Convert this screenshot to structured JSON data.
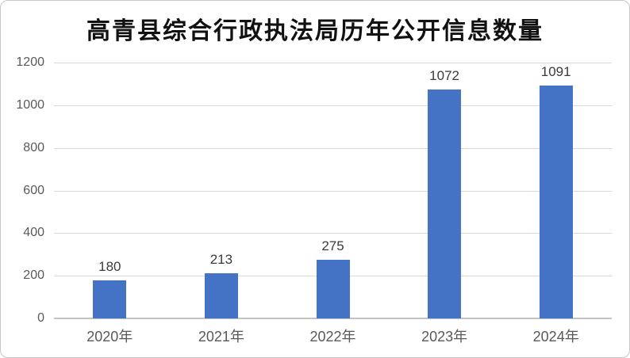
{
  "chart_data": {
    "type": "bar",
    "title": "高青县综合行政执法局历年公开信息数量",
    "categories": [
      "2020年",
      "2021年",
      "2022年",
      "2023年",
      "2024年"
    ],
    "values": [
      180,
      213,
      275,
      1072,
      1091
    ],
    "data_labels": [
      "180",
      "213",
      "275",
      "1072",
      "1091"
    ],
    "xlabel": "",
    "ylabel": "",
    "ylim": [
      0,
      1200
    ],
    "yticks": [
      0,
      200,
      400,
      600,
      800,
      1000,
      1200
    ],
    "grid": true,
    "legend": false,
    "colors": {
      "bar": "#4472C4",
      "gridline": "#D9D9D9",
      "axis_line": "#C3C3C3",
      "tick_label": "#595959",
      "data_label": "#3B3B3B",
      "title": "#111111",
      "background": "#FFFFFF",
      "border": "#C6C6C6"
    }
  }
}
